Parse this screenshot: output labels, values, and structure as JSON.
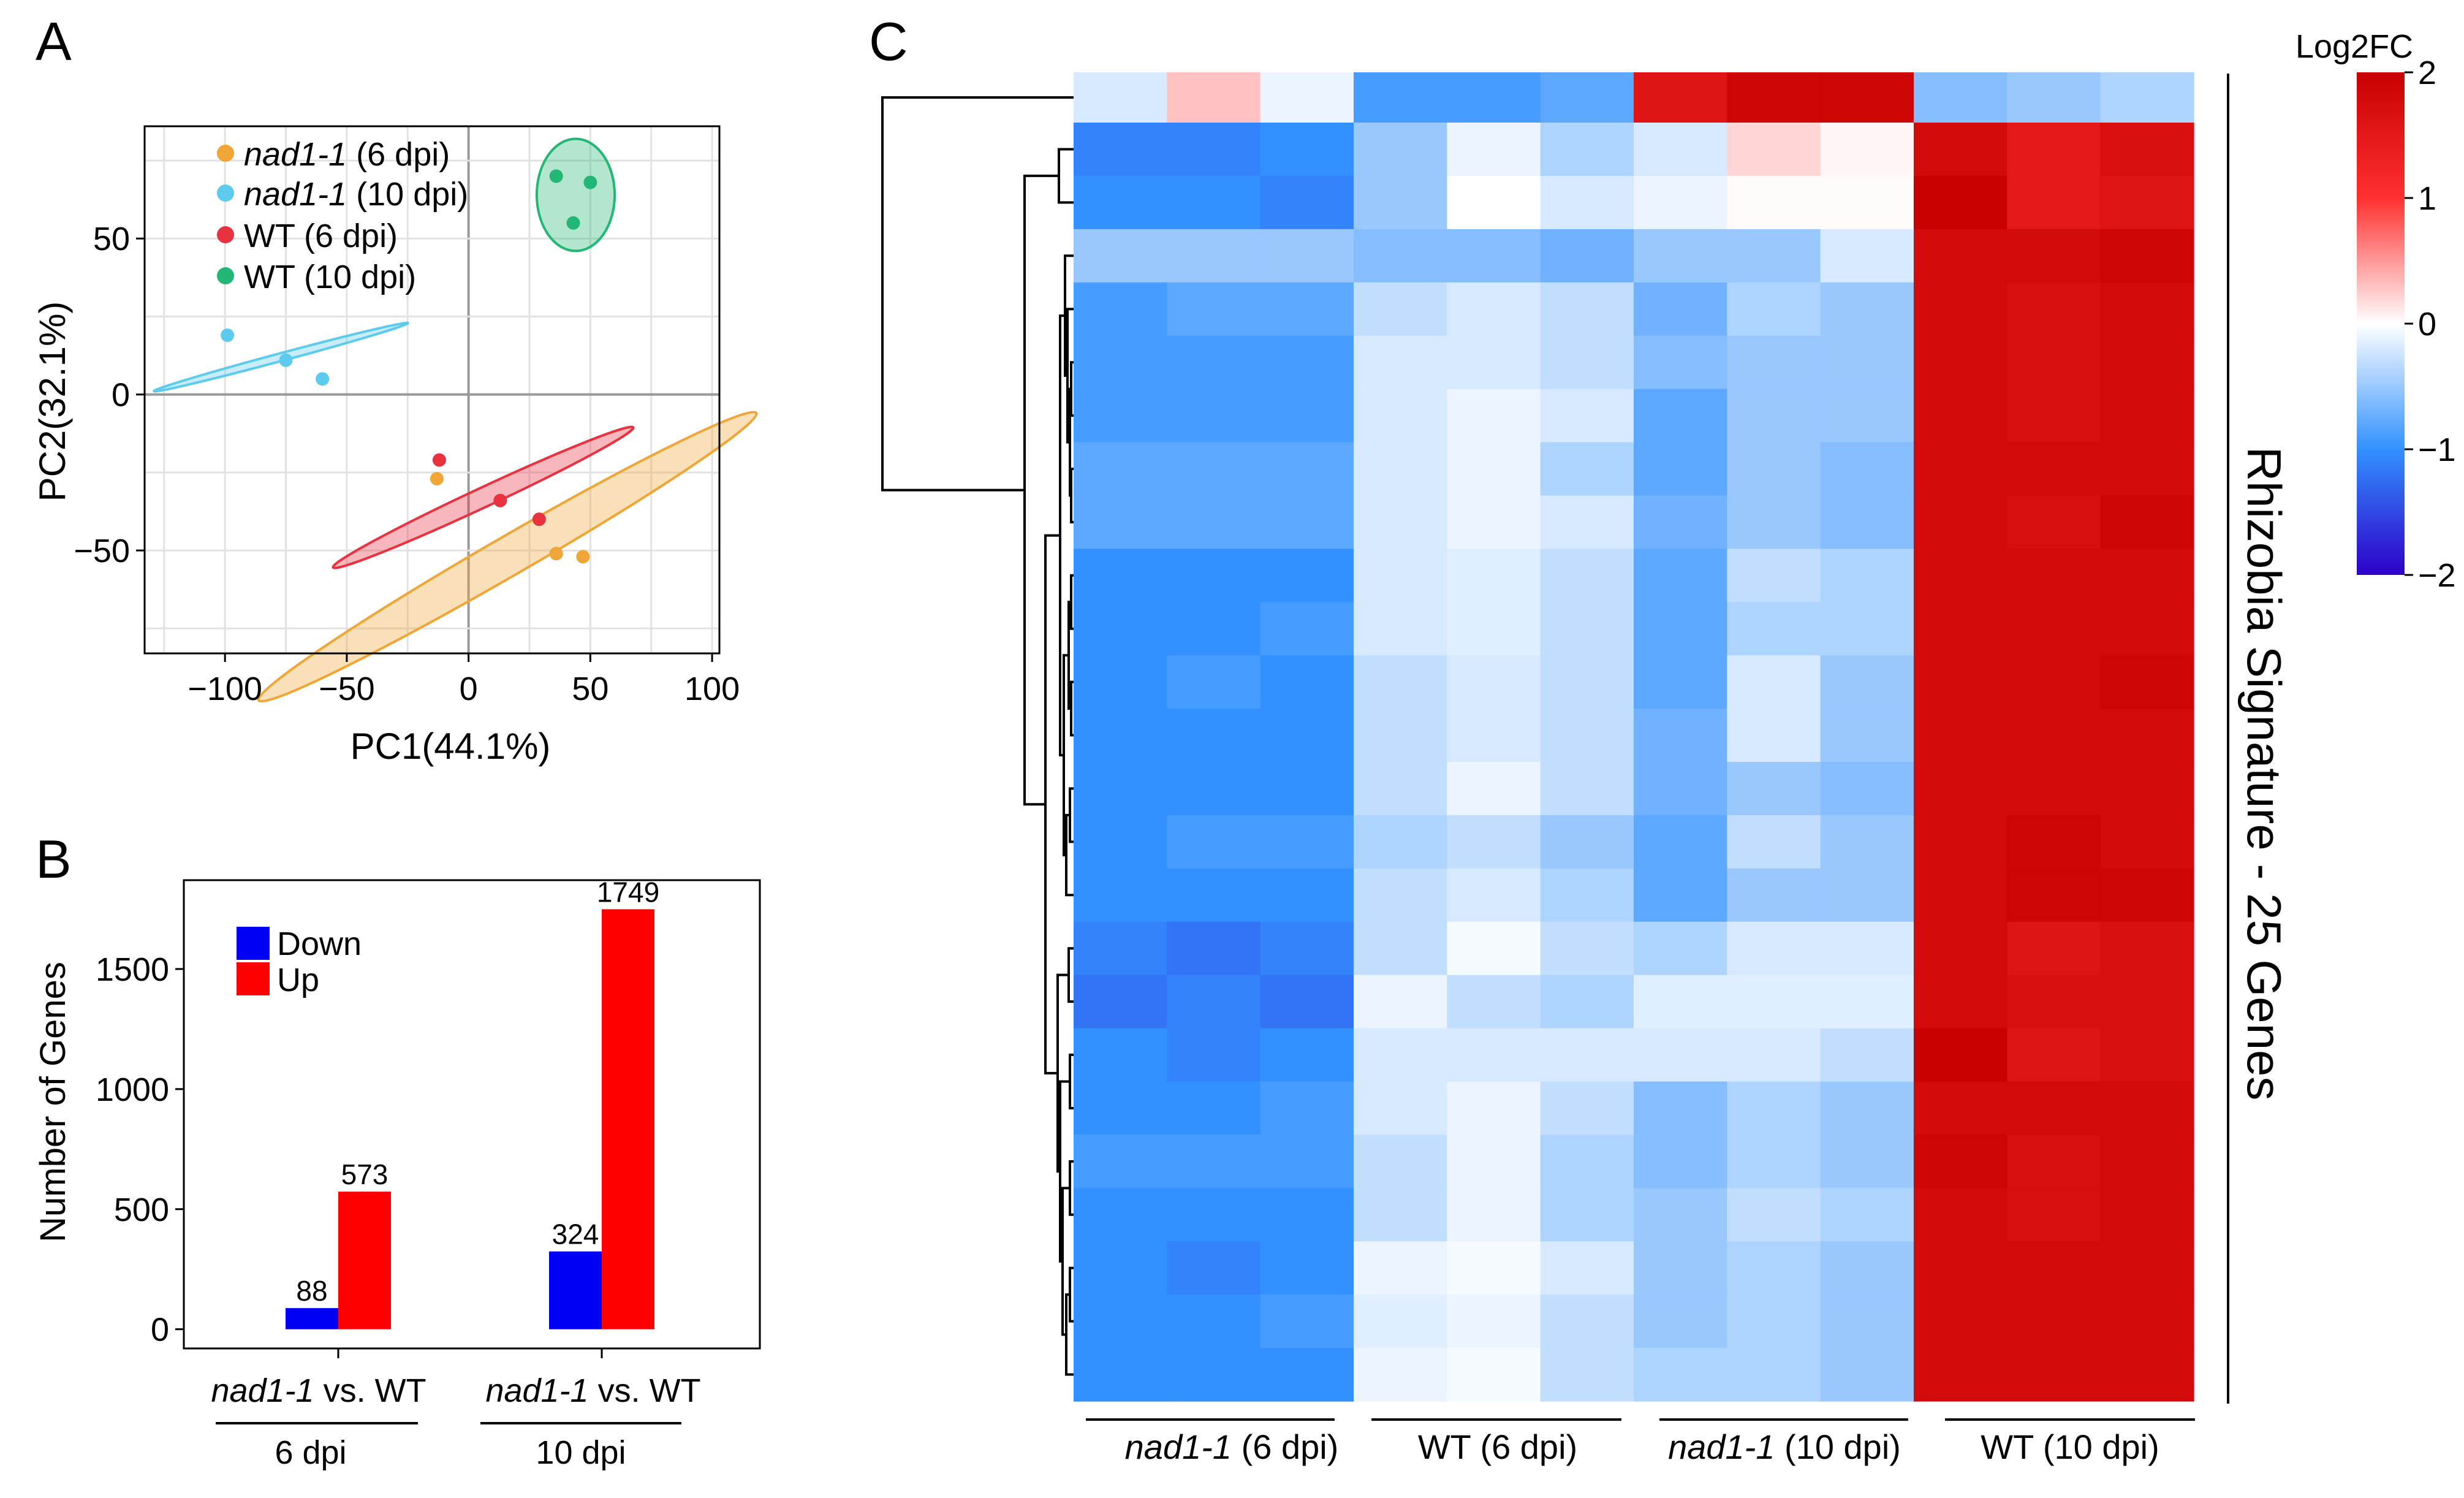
{
  "panel_labels": {
    "a": "A",
    "b": "B",
    "c": "C"
  },
  "colors": {
    "nad1_6": "#F0A636",
    "nad1_10": "#5CCBEE",
    "wt_6": "#E8323F",
    "wt_10": "#23B776",
    "down": "#0000F5",
    "up": "#FF0000",
    "grid": "#E2E2E2",
    "zero_line": "#999999"
  },
  "chart_data": [
    {
      "type": "scatter",
      "panel": "A",
      "xlabel": "PC1(44.1%)",
      "ylabel": "PC2(32.1%)",
      "xlim": [
        -133,
        103
      ],
      "ylim": [
        -83,
        86
      ],
      "xticks": [
        -100,
        -50,
        0,
        50,
        100
      ],
      "xtick_labels": [
        "−100",
        "−50",
        "0",
        "50",
        "100"
      ],
      "yticks": [
        -50,
        0,
        50
      ],
      "ytick_labels": [
        "−50",
        "0",
        "50"
      ],
      "grid": true,
      "legend_position": "top-left",
      "series": [
        {
          "name_italic": "nad1-1",
          "name_suffix": " (6 dpi)",
          "color_key": "nad1_6",
          "points": [
            [
              -13,
              -27
            ],
            [
              36,
              -51
            ],
            [
              47,
              -52
            ]
          ],
          "ellipse": {
            "cx": 16,
            "cy": -52,
            "rx": 118,
            "ry": 8,
            "angle_deg": 30
          }
        },
        {
          "name_italic": "nad1-1",
          "name_suffix": " (10 dpi)",
          "color_key": "nad1_10",
          "points": [
            [
              -99,
              19
            ],
            [
              -75,
              11
            ],
            [
              -60,
              5
            ]
          ],
          "ellipse": {
            "cx": -77,
            "cy": 12,
            "rx": 54,
            "ry": 1.6,
            "angle_deg": 15
          }
        },
        {
          "name": "WT (6 dpi)",
          "color_key": "wt_6",
          "points": [
            [
              -12,
              -21
            ],
            [
              13,
              -34
            ],
            [
              29,
              -40
            ]
          ],
          "ellipse": {
            "cx": 6,
            "cy": -33,
            "rx": 68,
            "ry": 4,
            "angle_deg": 25
          }
        },
        {
          "name": "WT (10 dpi)",
          "color_key": "wt_10",
          "points": [
            [
              36,
              70
            ],
            [
              50,
              68
            ],
            [
              43,
              55
            ]
          ],
          "ellipse": {
            "cx": 44,
            "cy": 64,
            "rx": 16,
            "ry": 23,
            "angle_deg": 0
          }
        }
      ]
    },
    {
      "type": "bar",
      "panel": "B",
      "ylabel": "Number of Genes",
      "ylim": [
        -80,
        1870
      ],
      "yticks": [
        0,
        500,
        1000,
        1500
      ],
      "groups": [
        {
          "label_italic": "nad1-1",
          "label_suffix": " vs. WT",
          "sublabel": "6 dpi"
        },
        {
          "label_italic": "nad1-1",
          "label_suffix": " vs. WT",
          "sublabel": "10 dpi"
        }
      ],
      "series": [
        {
          "name": "Down",
          "color_key": "down",
          "values": [
            88,
            324
          ]
        },
        {
          "name": "Up",
          "color_key": "up",
          "values": [
            573,
            1749
          ]
        }
      ],
      "legend_position": "top-left"
    },
    {
      "type": "heatmap",
      "panel": "C",
      "title": "Rhizobia Signature - 25 Genes",
      "colorbar": {
        "title": "Log2FC",
        "min": -2,
        "max": 2,
        "ticks": [
          2,
          1,
          0,
          -1,
          -2
        ],
        "tick_labels": [
          "2",
          "1",
          "0",
          "−1",
          "−2"
        ]
      },
      "column_groups": [
        {
          "label_italic": "nad1-1",
          "label_suffix": " (6 dpi)"
        },
        {
          "label": "WT (6 dpi)"
        },
        {
          "label_italic": "nad1-1",
          "label_suffix": " (10 dpi)"
        },
        {
          "label": "WT (10 dpi)"
        }
      ],
      "n_columns": 12,
      "n_rows": 25,
      "values": [
        [
          -0.2,
          0.3,
          -0.1,
          -0.9,
          -0.9,
          -0.8,
          1.6,
          1.9,
          1.9,
          -0.6,
          -0.5,
          -0.4
        ],
        [
          -1.1,
          -1.1,
          -1.0,
          -0.5,
          -0.1,
          -0.4,
          -0.2,
          0.2,
          0.05,
          1.8,
          1.5,
          1.7
        ],
        [
          -1.0,
          -1.0,
          -1.1,
          -0.5,
          0.0,
          -0.2,
          -0.1,
          0.02,
          0.02,
          2.0,
          1.5,
          1.6
        ],
        [
          -0.5,
          -0.5,
          -0.5,
          -0.6,
          -0.6,
          -0.7,
          -0.5,
          -0.5,
          -0.2,
          1.8,
          1.8,
          1.9
        ],
        [
          -0.9,
          -0.8,
          -0.8,
          -0.3,
          -0.2,
          -0.3,
          -0.7,
          -0.4,
          -0.5,
          1.8,
          1.7,
          1.8
        ],
        [
          -0.9,
          -0.9,
          -0.9,
          -0.2,
          -0.2,
          -0.3,
          -0.6,
          -0.5,
          -0.5,
          1.8,
          1.7,
          1.8
        ],
        [
          -0.9,
          -0.9,
          -0.9,
          -0.2,
          -0.1,
          -0.2,
          -0.8,
          -0.5,
          -0.5,
          1.8,
          1.7,
          1.8
        ],
        [
          -0.8,
          -0.8,
          -0.8,
          -0.2,
          -0.1,
          -0.4,
          -0.8,
          -0.5,
          -0.6,
          1.8,
          1.8,
          1.8
        ],
        [
          -0.8,
          -0.8,
          -0.8,
          -0.2,
          -0.1,
          -0.2,
          -0.7,
          -0.5,
          -0.6,
          1.8,
          1.7,
          1.9
        ],
        [
          -1.0,
          -1.0,
          -1.0,
          -0.2,
          -0.15,
          -0.3,
          -0.8,
          -0.3,
          -0.4,
          1.8,
          1.8,
          1.8
        ],
        [
          -1.0,
          -1.0,
          -0.9,
          -0.2,
          -0.15,
          -0.3,
          -0.8,
          -0.4,
          -0.4,
          1.8,
          1.8,
          1.8
        ],
        [
          -1.0,
          -0.9,
          -1.0,
          -0.3,
          -0.2,
          -0.3,
          -0.8,
          -0.2,
          -0.5,
          1.8,
          1.8,
          1.9
        ],
        [
          -1.0,
          -1.0,
          -1.0,
          -0.3,
          -0.2,
          -0.3,
          -0.7,
          -0.2,
          -0.5,
          1.8,
          1.8,
          1.8
        ],
        [
          -1.0,
          -1.0,
          -1.0,
          -0.3,
          -0.1,
          -0.3,
          -0.7,
          -0.5,
          -0.6,
          1.8,
          1.8,
          1.8
        ],
        [
          -1.0,
          -0.9,
          -0.9,
          -0.4,
          -0.3,
          -0.5,
          -0.8,
          -0.3,
          -0.5,
          1.8,
          1.9,
          1.8
        ],
        [
          -1.0,
          -1.0,
          -1.0,
          -0.3,
          -0.2,
          -0.4,
          -0.8,
          -0.5,
          -0.5,
          1.8,
          1.9,
          1.9
        ],
        [
          -1.1,
          -1.2,
          -1.1,
          -0.3,
          -0.05,
          -0.3,
          -0.4,
          -0.2,
          -0.2,
          1.8,
          1.6,
          1.7
        ],
        [
          -1.2,
          -1.1,
          -1.2,
          -0.1,
          -0.3,
          -0.4,
          -0.15,
          -0.15,
          -0.15,
          1.8,
          1.7,
          1.7
        ],
        [
          -1.0,
          -1.1,
          -1.0,
          -0.2,
          -0.2,
          -0.2,
          -0.2,
          -0.2,
          -0.3,
          2.0,
          1.6,
          1.7
        ],
        [
          -1.0,
          -1.0,
          -0.9,
          -0.2,
          -0.1,
          -0.3,
          -0.6,
          -0.4,
          -0.5,
          1.8,
          1.8,
          1.8
        ],
        [
          -0.9,
          -0.9,
          -0.9,
          -0.3,
          -0.1,
          -0.4,
          -0.6,
          -0.4,
          -0.5,
          1.9,
          1.7,
          1.8
        ],
        [
          -1.0,
          -1.0,
          -1.0,
          -0.3,
          -0.1,
          -0.4,
          -0.5,
          -0.3,
          -0.4,
          1.8,
          1.7,
          1.8
        ],
        [
          -1.0,
          -1.1,
          -1.0,
          -0.1,
          -0.05,
          -0.2,
          -0.5,
          -0.4,
          -0.5,
          1.8,
          1.8,
          1.8
        ],
        [
          -1.0,
          -1.0,
          -0.9,
          -0.15,
          -0.1,
          -0.3,
          -0.5,
          -0.4,
          -0.5,
          1.8,
          1.8,
          1.8
        ],
        [
          -1.0,
          -1.0,
          -1.0,
          -0.1,
          -0.05,
          -0.3,
          -0.4,
          -0.4,
          -0.5,
          1.8,
          1.8,
          1.8
        ]
      ]
    }
  ]
}
